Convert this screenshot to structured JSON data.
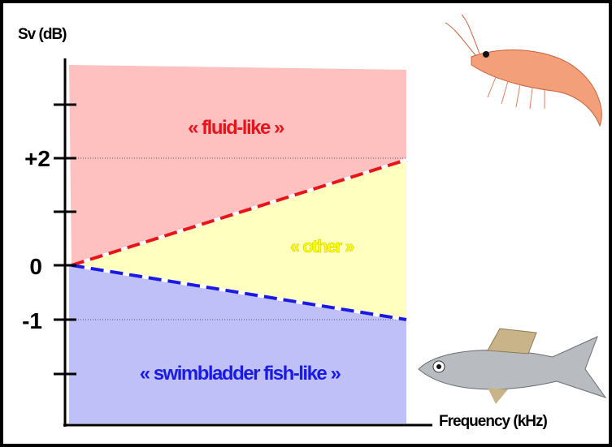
{
  "axes": {
    "y_label": "Sv (dB)",
    "x_label": "Frequency (kHz)",
    "tick_labels": [
      "+2",
      "0",
      "-1"
    ]
  },
  "regions": {
    "fluid": "« fluid-like »",
    "other": "« other »",
    "fish": "« swimbladder fish-like »"
  }
}
